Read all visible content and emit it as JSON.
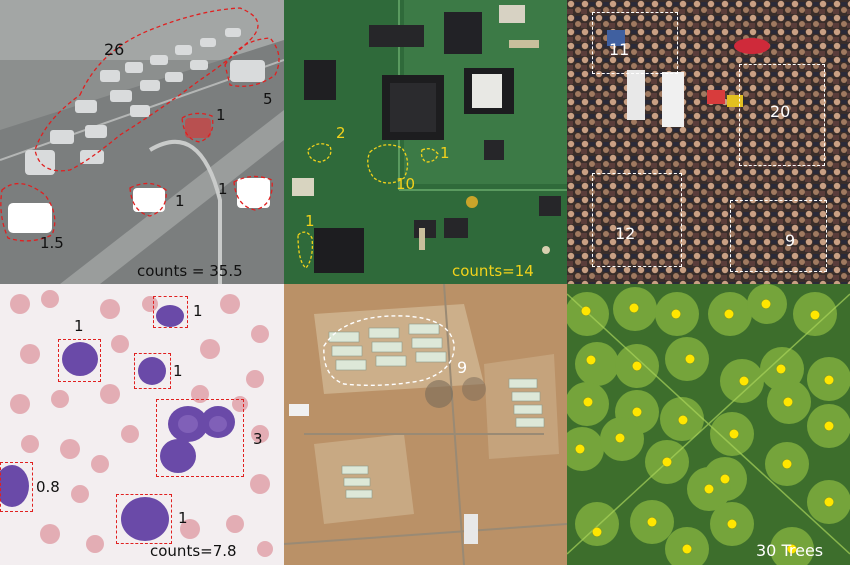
{
  "colors": {
    "traffic_annot": "#e02020",
    "pcb_annot": "#f2d21b",
    "crowd_annot": "#ffffff",
    "cells_annot": "#e02020",
    "aerial_annot": "#ffffff",
    "tree_dot": "#ffe600"
  },
  "panels": {
    "traffic": {
      "region_labels": [
        "26",
        "5",
        "1",
        "1",
        "1",
        "1.5"
      ],
      "total": "counts = 35.5"
    },
    "pcb": {
      "region_labels": [
        "2",
        "1",
        "10",
        "1"
      ],
      "total": "counts=14"
    },
    "crowd": {
      "region_labels": [
        "11",
        "20",
        "12",
        "9"
      ]
    },
    "cells": {
      "region_labels": [
        "1",
        "1",
        "1",
        "3",
        "0.8",
        "1"
      ],
      "total": "counts=7.8"
    },
    "aerial": {
      "region_labels": [
        "9"
      ]
    },
    "trees": {
      "total": "30 Trees"
    }
  }
}
